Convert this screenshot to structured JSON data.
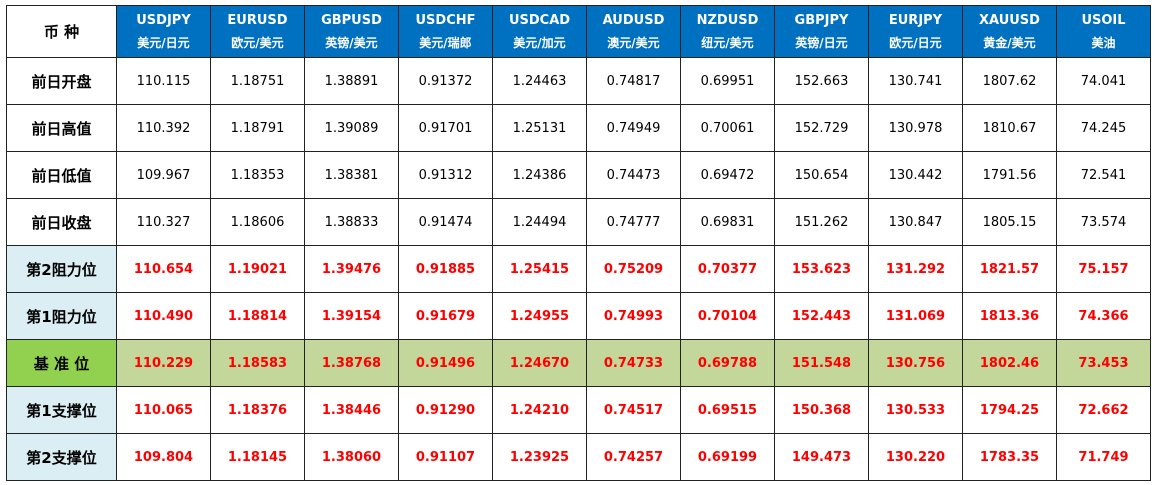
{
  "header": {
    "corner": "币 种",
    "columns": [
      {
        "code": "USDJPY",
        "name": "美元/日元"
      },
      {
        "code": "EURUSD",
        "name": "欧元/美元"
      },
      {
        "code": "GBPUSD",
        "name": "英镑/美元"
      },
      {
        "code": "USDCHF",
        "name": "美元/瑞郎"
      },
      {
        "code": "USDCAD",
        "name": "美元/加元"
      },
      {
        "code": "AUDUSD",
        "name": "澳元/美元"
      },
      {
        "code": "NZDUSD",
        "name": "纽元/美元"
      },
      {
        "code": "GBPJPY",
        "name": "英镑/日元"
      },
      {
        "code": "EURJPY",
        "name": "欧元/日元"
      },
      {
        "code": "XAUUSD",
        "name": "黄金/美元"
      },
      {
        "code": "USOIL",
        "name": "美油"
      }
    ]
  },
  "rows": [
    {
      "label": "前日开盘",
      "values": [
        "110.115",
        "1.18751",
        "1.38891",
        "0.91372",
        "1.24463",
        "0.74817",
        "0.69951",
        "152.663",
        "130.741",
        "1807.62",
        "74.041"
      ]
    },
    {
      "label": "前日高值",
      "values": [
        "110.392",
        "1.18791",
        "1.39089",
        "0.91701",
        "1.25131",
        "0.74949",
        "0.70061",
        "152.729",
        "130.978",
        "1810.67",
        "74.245"
      ]
    },
    {
      "label": "前日低值",
      "values": [
        "109.967",
        "1.18353",
        "1.38381",
        "0.91312",
        "1.24386",
        "0.74473",
        "0.69472",
        "150.654",
        "130.442",
        "1791.56",
        "72.541"
      ]
    },
    {
      "label": "前日收盘",
      "values": [
        "110.327",
        "1.18606",
        "1.38833",
        "0.91474",
        "1.24494",
        "0.74777",
        "0.69831",
        "151.262",
        "130.847",
        "1805.15",
        "73.574"
      ]
    },
    {
      "label": "第2阻力位",
      "values": [
        "110.654",
        "1.19021",
        "1.39476",
        "0.91885",
        "1.25415",
        "0.75209",
        "0.70377",
        "153.623",
        "131.292",
        "1821.57",
        "75.157"
      ]
    },
    {
      "label": "第1阻力位",
      "values": [
        "110.490",
        "1.18814",
        "1.39154",
        "0.91679",
        "1.24955",
        "0.74993",
        "0.70104",
        "152.443",
        "131.069",
        "1813.36",
        "74.366"
      ]
    },
    {
      "label": "基 准 位",
      "values": [
        "110.229",
        "1.18583",
        "1.38768",
        "0.91496",
        "1.24670",
        "0.74733",
        "0.69788",
        "151.548",
        "130.756",
        "1802.46",
        "73.453"
      ]
    },
    {
      "label": "第1支撑位",
      "values": [
        "110.065",
        "1.18376",
        "1.38446",
        "0.91290",
        "1.24210",
        "0.74517",
        "0.69515",
        "150.368",
        "130.533",
        "1794.25",
        "72.662"
      ]
    },
    {
      "label": "第2支撑位",
      "values": [
        "109.804",
        "1.18145",
        "1.38060",
        "0.91107",
        "1.23925",
        "0.74257",
        "0.69199",
        "149.473",
        "130.220",
        "1783.35",
        "71.749"
      ]
    }
  ]
}
